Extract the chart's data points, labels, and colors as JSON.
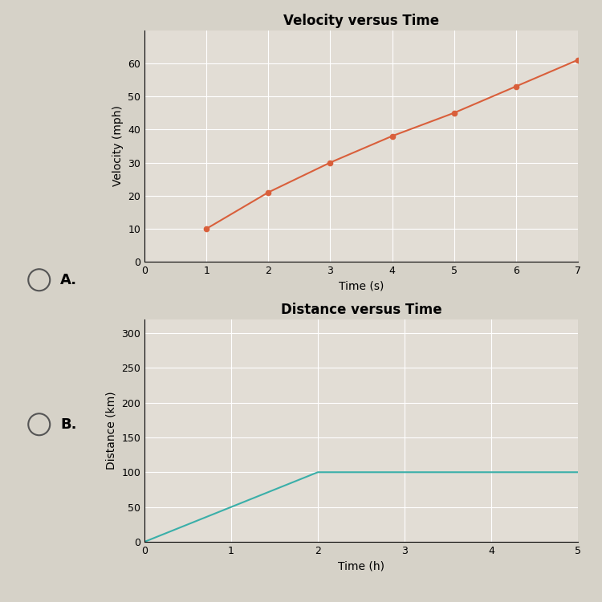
{
  "chart_a": {
    "title": "Velocity versus Time",
    "xlabel": "Time (s)",
    "ylabel": "Velocity (mph)",
    "x": [
      1,
      2,
      3,
      4,
      5,
      6,
      7
    ],
    "y": [
      10,
      21,
      30,
      38,
      45,
      53,
      61
    ],
    "line_color": "#d95f3b",
    "marker": "o",
    "xlim": [
      0,
      7
    ],
    "ylim": [
      0,
      70
    ],
    "xticks": [
      0,
      1,
      2,
      3,
      4,
      5,
      6,
      7
    ],
    "yticks": [
      0,
      10,
      20,
      30,
      40,
      50,
      60
    ]
  },
  "chart_b": {
    "title": "Distance versus Time",
    "xlabel": "Time (h)",
    "ylabel": "Distance (km)",
    "x": [
      0,
      2,
      5
    ],
    "y": [
      0,
      100,
      100
    ],
    "line_color": "#3aafa9",
    "xlim": [
      0,
      5
    ],
    "ylim": [
      0,
      320
    ],
    "xticks": [
      0,
      1,
      2,
      3,
      4,
      5
    ],
    "yticks": [
      0,
      50,
      100,
      150,
      200,
      250,
      300
    ]
  },
  "label_a": "A.",
  "label_b": "B.",
  "background_color": "#d6d2c8",
  "plot_bg_color": "#e2ddd5",
  "grid_color": "#ffffff",
  "title_fontsize": 12,
  "axis_label_fontsize": 10,
  "tick_fontsize": 9,
  "label_fontsize": 13
}
